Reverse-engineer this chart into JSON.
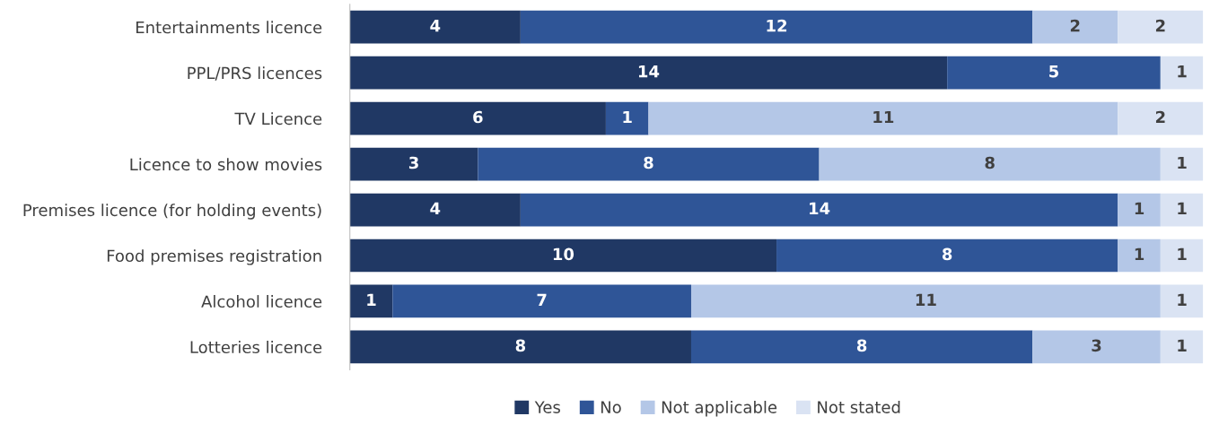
{
  "chart_data": {
    "type": "bar",
    "orientation": "horizontal",
    "stacked": true,
    "data_labels": true,
    "legend": "bottom",
    "grid": false,
    "categories": [
      "Entertainments licence",
      "PPL/PRS licences",
      "TV Licence",
      "Licence to show movies",
      "Premises licence (for holding events)",
      "Food premises registration",
      "Alcohol licence",
      "Lotteries licence"
    ],
    "series": [
      {
        "name": "Yes",
        "color": "#203864",
        "values": [
          4,
          14,
          6,
          3,
          4,
          10,
          1,
          8
        ]
      },
      {
        "name": "No",
        "color": "#2f5597",
        "values": [
          12,
          5,
          1,
          8,
          14,
          8,
          7,
          8
        ]
      },
      {
        "name": "Not applicable",
        "color": "#b4c7e7",
        "values": [
          2,
          null,
          11,
          8,
          1,
          1,
          11,
          3
        ]
      },
      {
        "name": "Not stated",
        "color": "#dae3f3",
        "values": [
          2,
          1,
          2,
          1,
          1,
          1,
          1,
          1
        ]
      }
    ]
  }
}
